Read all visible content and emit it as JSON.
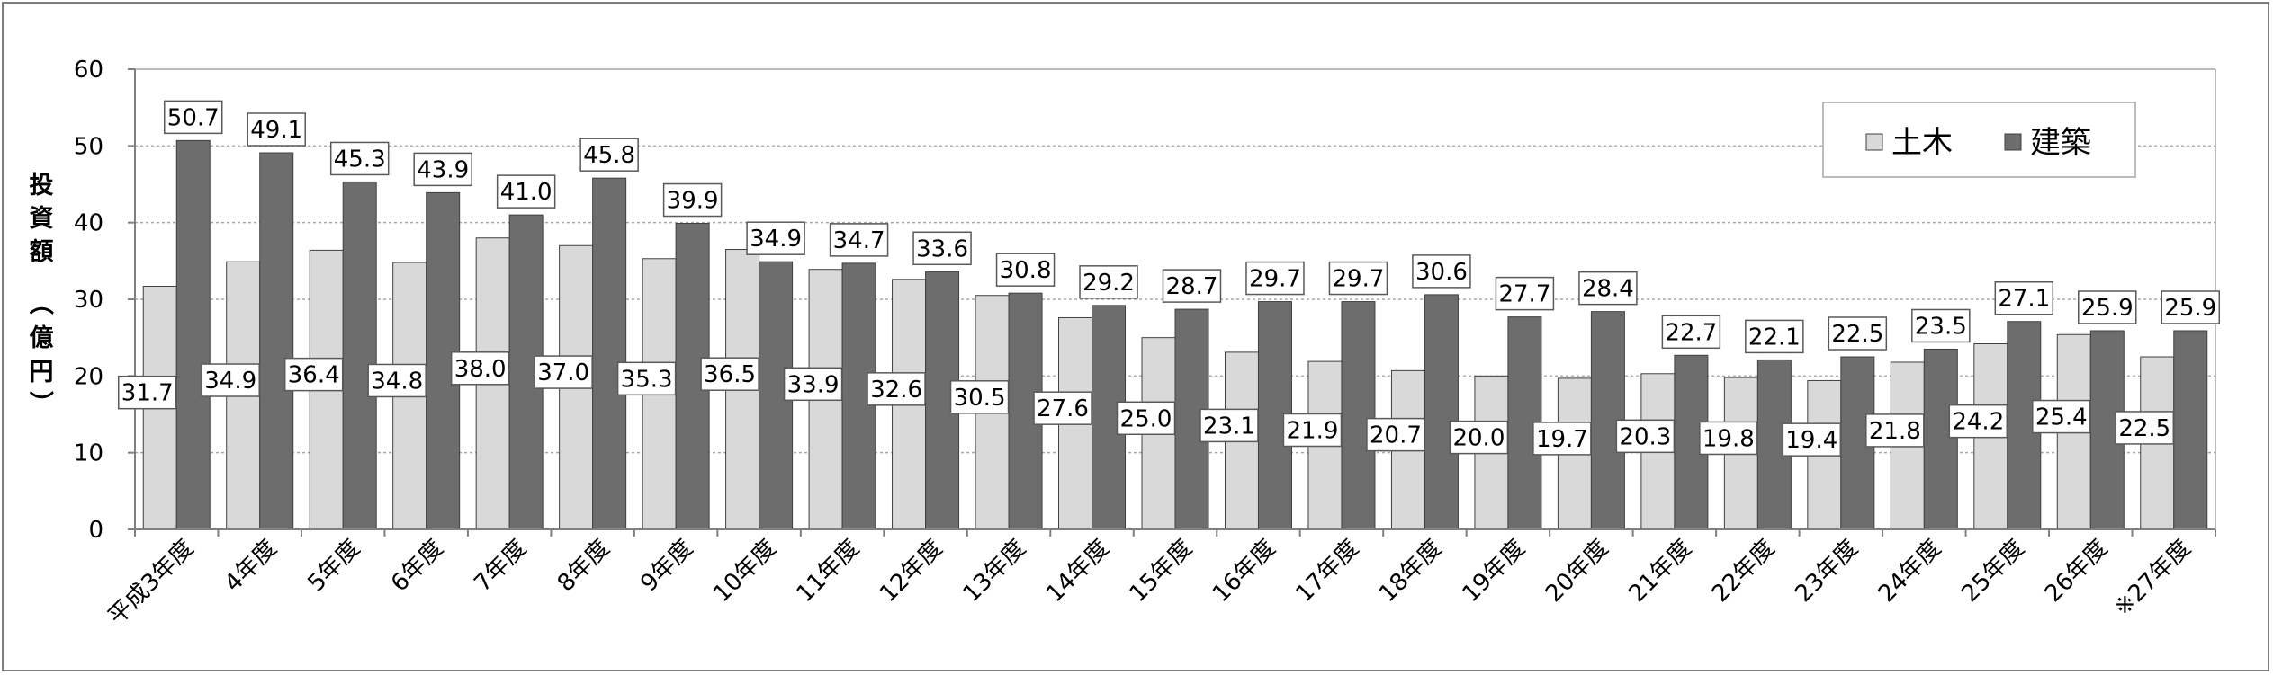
{
  "chart_data": {
    "type": "bar",
    "title": "",
    "xlabel": "",
    "ylabel": "投資額（億円）",
    "ylim": [
      0,
      60
    ],
    "yticks": [
      0,
      10,
      20,
      30,
      40,
      50,
      60
    ],
    "grid": true,
    "legend_position": "top-right",
    "categories": [
      "平成3年度",
      "4年度",
      "5年度",
      "6年度",
      "7年度",
      "8年度",
      "9年度",
      "10年度",
      "11年度",
      "12年度",
      "13年度",
      "14年度",
      "15年度",
      "16年度",
      "17年度",
      "18年度",
      "19年度",
      "20年度",
      "21年度",
      "22年度",
      "23年度",
      "24年度",
      "25年度",
      "26年度",
      "※27年度"
    ],
    "series": [
      {
        "name": "土木",
        "color": "#d9d9d9",
        "values": [
          31.7,
          34.9,
          36.4,
          34.8,
          38.0,
          37.0,
          35.3,
          36.5,
          33.9,
          32.6,
          30.5,
          27.6,
          25.0,
          23.1,
          21.9,
          20.7,
          20.0,
          19.7,
          20.3,
          19.8,
          19.4,
          21.8,
          24.2,
          25.4,
          22.5
        ]
      },
      {
        "name": "建築",
        "color": "#6d6d6d",
        "values": [
          50.7,
          49.1,
          45.3,
          43.9,
          41.0,
          45.8,
          39.9,
          34.9,
          34.7,
          33.6,
          30.8,
          29.2,
          28.7,
          29.7,
          29.7,
          30.6,
          27.7,
          28.4,
          22.7,
          22.1,
          22.5,
          23.5,
          27.1,
          25.9,
          25.9
        ]
      }
    ],
    "data_labels": {
      "civil": [
        "31.7",
        "34.9",
        "36.4",
        "34.8",
        "38.0",
        "37.0",
        "35.3",
        "36.5",
        "33.9",
        "32.6",
        "30.5",
        "27.6",
        "25.0",
        "23.1",
        "21.9",
        "20.7",
        "20.0",
        "19.7",
        "20.3",
        "19.8",
        "19.4",
        "21.8",
        "24.2",
        "25.4",
        "22.5"
      ],
      "architecture": [
        "50.7",
        "49.1",
        "45.3",
        "43.9",
        "41.0",
        "45.8",
        "39.9",
        "34.9",
        "34.7",
        "33.6",
        "30.8",
        "29.2",
        "28.7",
        "29.7",
        "29.7",
        "30.6",
        "27.7",
        "28.4",
        "22.7",
        "22.1",
        "22.5",
        "23.5",
        "27.1",
        "25.9",
        "25.9"
      ]
    }
  },
  "colors": {
    "frame": "#7f7f7f",
    "axis": "#808080",
    "gridline": "#a6a6a6",
    "bar_outline": "#404040"
  }
}
